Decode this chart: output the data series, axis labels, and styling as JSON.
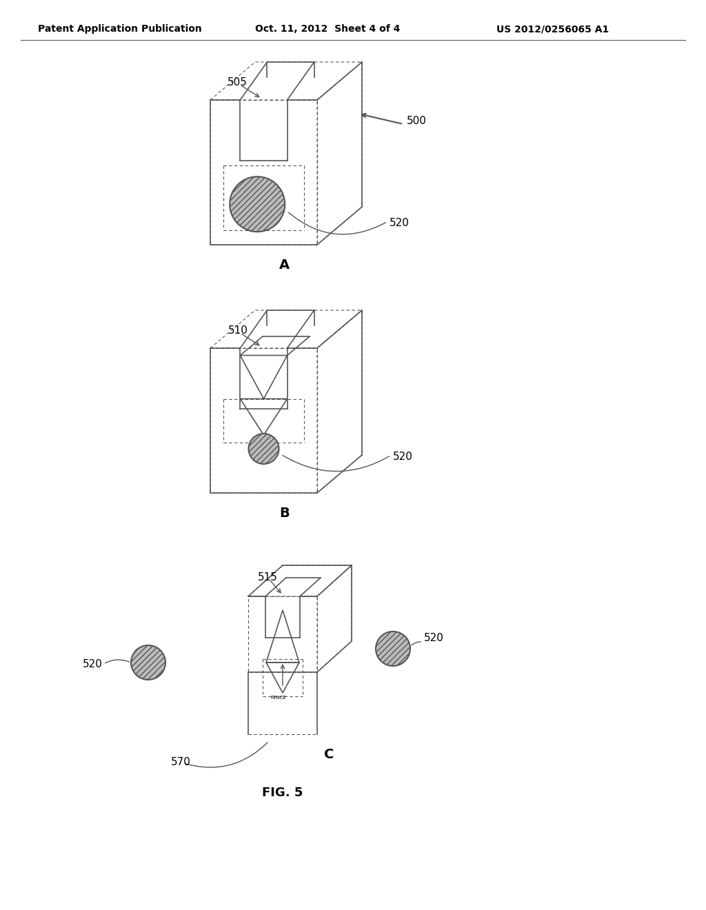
{
  "bg_color": "#ffffff",
  "header_left": "Patent Application Publication",
  "header_mid": "Oct. 11, 2012  Sheet 4 of 4",
  "header_right": "US 2012/0256065 A1",
  "fig_label": "FIG. 5",
  "panel_A_label": "A",
  "panel_B_label": "B",
  "panel_C_label": "C",
  "ref_500": "500",
  "ref_505": "505",
  "ref_510": "510",
  "ref_515": "515",
  "ref_520": "520",
  "ref_570": "570",
  "line_color": "#555555",
  "circle_fill": "#b8b8b8",
  "circle_edge": "#555555"
}
